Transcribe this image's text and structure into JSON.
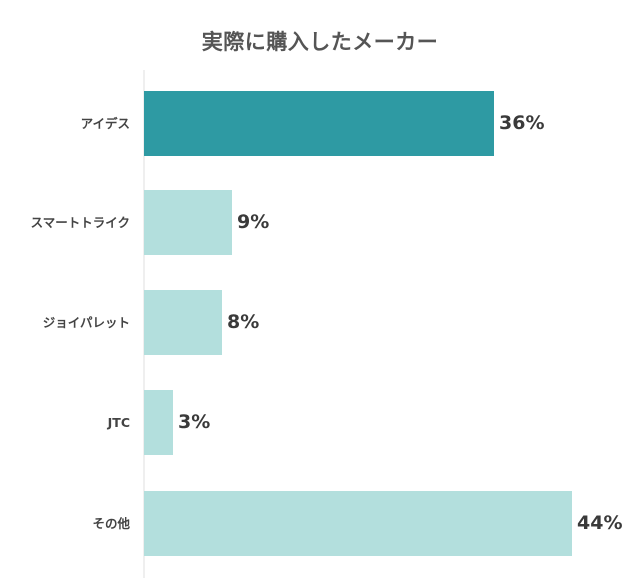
{
  "chart_data": {
    "type": "bar",
    "orientation": "horizontal",
    "title": "実際に購入したメーカー",
    "xlabel": "",
    "ylabel": "",
    "categories": [
      "アイデス",
      "スマートトライク",
      "ジョイパレット",
      "JTC",
      "その他"
    ],
    "values": [
      36,
      9,
      8,
      3,
      44
    ],
    "value_labels": [
      "36%",
      "9%",
      "8%",
      "3%",
      "44%"
    ],
    "unit": "%",
    "xlim": [
      0,
      44
    ],
    "grid": false,
    "legend": null,
    "colors": {
      "highlight": "#2e9aa3",
      "default": "#b3dfdd"
    },
    "highlighted_category": "アイデス"
  }
}
